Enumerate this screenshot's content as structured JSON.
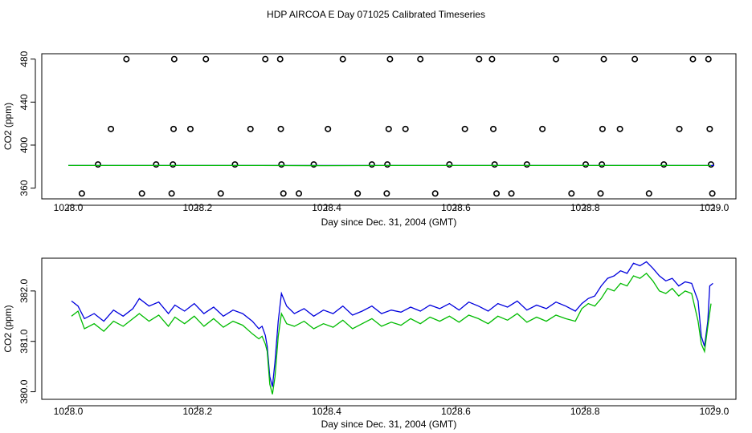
{
  "page_title": "HDP AIRCOA E  Day 071025  Calibrated Timeseries",
  "colors": {
    "blue": "#0000dd",
    "green": "#00bb00",
    "black": "#000000"
  },
  "chart_data": [
    {
      "type": "scatter",
      "title": "HDP AIRCOA E  Day 071025  Calibrated Timeseries",
      "xlabel": "Day since Dec. 31, 2004 (GMT)",
      "ylabel": "CO2 (ppm)",
      "xlim": [
        1028.0,
        1029.0
      ],
      "ylim": [
        350,
        485
      ],
      "xticks": [
        "1028.0",
        "1028.2",
        "1028.4",
        "1028.6",
        "1028.8",
        "1029.0"
      ],
      "xtick_values": [
        1028.0,
        1028.2,
        1028.4,
        1028.6,
        1028.8,
        1029.0
      ],
      "yticks": [
        "360",
        "400",
        "440",
        "480"
      ],
      "ytick_values": [
        360,
        400,
        440,
        480
      ],
      "series": [
        {
          "marker": "open-circle",
          "color": "#000000",
          "points": [
            [
              1028.021,
              355
            ],
            [
              1028.046,
              382
            ],
            [
              1028.066,
              415
            ],
            [
              1028.09,
              480
            ],
            [
              1028.114,
              355
            ],
            [
              1028.136,
              382
            ],
            [
              1028.16,
              355
            ],
            [
              1028.162,
              382
            ],
            [
              1028.163,
              415
            ],
            [
              1028.164,
              480
            ],
            [
              1028.189,
              415
            ],
            [
              1028.213,
              480
            ],
            [
              1028.236,
              355
            ],
            [
              1028.258,
              382
            ],
            [
              1028.282,
              415
            ],
            [
              1028.305,
              480
            ],
            [
              1028.328,
              480
            ],
            [
              1028.329,
              415
            ],
            [
              1028.33,
              382
            ],
            [
              1028.333,
              355
            ],
            [
              1028.357,
              355
            ],
            [
              1028.38,
              382
            ],
            [
              1028.402,
              415
            ],
            [
              1028.425,
              480
            ],
            [
              1028.448,
              355
            ],
            [
              1028.47,
              382
            ],
            [
              1028.493,
              355
            ],
            [
              1028.494,
              382
            ],
            [
              1028.496,
              415
            ],
            [
              1028.498,
              480
            ],
            [
              1028.522,
              415
            ],
            [
              1028.545,
              480
            ],
            [
              1028.568,
              355
            ],
            [
              1028.59,
              382
            ],
            [
              1028.614,
              415
            ],
            [
              1028.636,
              480
            ],
            [
              1028.656,
              480
            ],
            [
              1028.658,
              415
            ],
            [
              1028.66,
              382
            ],
            [
              1028.663,
              355
            ],
            [
              1028.686,
              355
            ],
            [
              1028.71,
              382
            ],
            [
              1028.734,
              415
            ],
            [
              1028.755,
              480
            ],
            [
              1028.779,
              355
            ],
            [
              1028.801,
              382
            ],
            [
              1028.824,
              355
            ],
            [
              1028.826,
              382
            ],
            [
              1028.827,
              415
            ],
            [
              1028.829,
              480
            ],
            [
              1028.854,
              415
            ],
            [
              1028.877,
              480
            ],
            [
              1028.899,
              355
            ],
            [
              1028.922,
              382
            ],
            [
              1028.946,
              415
            ],
            [
              1028.967,
              480
            ],
            [
              1028.991,
              480
            ],
            [
              1028.993,
              415
            ],
            [
              1028.995,
              382
            ],
            [
              1028.997,
              355
            ]
          ]
        },
        {
          "name": "",
          "type": "line",
          "color": "#0000dd",
          "x_start": 1028.0,
          "x_end": 1029.0,
          "values": [
            381,
            381,
            381,
            381,
            381,
            381,
            381,
            381,
            381,
            381,
            381
          ]
        },
        {
          "name": "",
          "type": "line",
          "color": "#00bb00",
          "x_start": 1028.0,
          "x_end": 1028.995,
          "values": [
            381,
            381,
            381,
            381,
            380.9,
            381,
            381,
            381,
            381,
            381,
            381
          ]
        }
      ]
    },
    {
      "type": "line",
      "xlabel": "Day since Dec. 31, 2004 (GMT)",
      "ylabel": "CO2 (ppm)",
      "xlim": [
        1028.0,
        1029.0
      ],
      "ylim": [
        379.85,
        382.65
      ],
      "xticks": [
        "1028.0",
        "1028.2",
        "1028.4",
        "1028.6",
        "1028.8",
        "1029.0"
      ],
      "xtick_values": [
        1028.0,
        1028.2,
        1028.4,
        1028.6,
        1028.8,
        1029.0
      ],
      "yticks": [
        "380.0",
        "381.0",
        "382.0"
      ],
      "ytick_values": [
        380.0,
        381.0,
        382.0
      ],
      "series": [
        {
          "color": "#0000dd",
          "points": [
            [
              1028.005,
              381.8
            ],
            [
              1028.015,
              381.7
            ],
            [
              1028.025,
              381.45
            ],
            [
              1028.04,
              381.55
            ],
            [
              1028.055,
              381.4
            ],
            [
              1028.07,
              381.62
            ],
            [
              1028.085,
              381.5
            ],
            [
              1028.1,
              381.65
            ],
            [
              1028.11,
              381.85
            ],
            [
              1028.125,
              381.7
            ],
            [
              1028.14,
              381.78
            ],
            [
              1028.155,
              381.55
            ],
            [
              1028.165,
              381.72
            ],
            [
              1028.18,
              381.6
            ],
            [
              1028.195,
              381.75
            ],
            [
              1028.21,
              381.55
            ],
            [
              1028.225,
              381.68
            ],
            [
              1028.24,
              381.5
            ],
            [
              1028.255,
              381.62
            ],
            [
              1028.27,
              381.55
            ],
            [
              1028.285,
              381.4
            ],
            [
              1028.295,
              381.25
            ],
            [
              1028.3,
              381.3
            ],
            [
              1028.305,
              381.12
            ],
            [
              1028.308,
              380.9
            ],
            [
              1028.312,
              380.3
            ],
            [
              1028.316,
              380.1
            ],
            [
              1028.32,
              380.6
            ],
            [
              1028.325,
              381.4
            ],
            [
              1028.33,
              381.95
            ],
            [
              1028.338,
              381.7
            ],
            [
              1028.35,
              381.55
            ],
            [
              1028.365,
              381.65
            ],
            [
              1028.38,
              381.5
            ],
            [
              1028.395,
              381.62
            ],
            [
              1028.41,
              381.55
            ],
            [
              1028.425,
              381.7
            ],
            [
              1028.44,
              381.52
            ],
            [
              1028.455,
              381.6
            ],
            [
              1028.47,
              381.7
            ],
            [
              1028.485,
              381.55
            ],
            [
              1028.5,
              381.62
            ],
            [
              1028.515,
              381.58
            ],
            [
              1028.53,
              381.68
            ],
            [
              1028.545,
              381.6
            ],
            [
              1028.56,
              381.72
            ],
            [
              1028.575,
              381.65
            ],
            [
              1028.59,
              381.75
            ],
            [
              1028.605,
              381.62
            ],
            [
              1028.62,
              381.78
            ],
            [
              1028.635,
              381.7
            ],
            [
              1028.65,
              381.6
            ],
            [
              1028.665,
              381.75
            ],
            [
              1028.68,
              381.68
            ],
            [
              1028.695,
              381.8
            ],
            [
              1028.71,
              381.62
            ],
            [
              1028.725,
              381.72
            ],
            [
              1028.74,
              381.65
            ],
            [
              1028.755,
              381.78
            ],
            [
              1028.77,
              381.7
            ],
            [
              1028.785,
              381.6
            ],
            [
              1028.795,
              381.75
            ],
            [
              1028.805,
              381.85
            ],
            [
              1028.815,
              381.9
            ],
            [
              1028.825,
              382.1
            ],
            [
              1028.835,
              382.25
            ],
            [
              1028.845,
              382.3
            ],
            [
              1028.855,
              382.4
            ],
            [
              1028.865,
              382.35
            ],
            [
              1028.875,
              382.55
            ],
            [
              1028.885,
              382.5
            ],
            [
              1028.895,
              382.58
            ],
            [
              1028.905,
              382.45
            ],
            [
              1028.915,
              382.3
            ],
            [
              1028.925,
              382.2
            ],
            [
              1028.935,
              382.25
            ],
            [
              1028.945,
              382.1
            ],
            [
              1028.955,
              382.18
            ],
            [
              1028.965,
              382.15
            ],
            [
              1028.975,
              381.8
            ],
            [
              1028.98,
              381.1
            ],
            [
              1028.985,
              380.9
            ],
            [
              1028.99,
              381.4
            ],
            [
              1028.993,
              382.1
            ],
            [
              1028.998,
              382.15
            ]
          ]
        },
        {
          "color": "#00bb00",
          "points": [
            [
              1028.005,
              381.5
            ],
            [
              1028.015,
              381.6
            ],
            [
              1028.025,
              381.25
            ],
            [
              1028.04,
              381.35
            ],
            [
              1028.055,
              381.2
            ],
            [
              1028.07,
              381.4
            ],
            [
              1028.085,
              381.3
            ],
            [
              1028.1,
              381.45
            ],
            [
              1028.11,
              381.55
            ],
            [
              1028.125,
              381.4
            ],
            [
              1028.14,
              381.52
            ],
            [
              1028.155,
              381.3
            ],
            [
              1028.165,
              381.48
            ],
            [
              1028.18,
              381.35
            ],
            [
              1028.195,
              381.5
            ],
            [
              1028.21,
              381.3
            ],
            [
              1028.225,
              381.45
            ],
            [
              1028.24,
              381.28
            ],
            [
              1028.255,
              381.4
            ],
            [
              1028.27,
              381.32
            ],
            [
              1028.285,
              381.15
            ],
            [
              1028.295,
              381.05
            ],
            [
              1028.3,
              381.1
            ],
            [
              1028.305,
              380.95
            ],
            [
              1028.308,
              380.8
            ],
            [
              1028.312,
              380.15
            ],
            [
              1028.316,
              379.95
            ],
            [
              1028.32,
              380.3
            ],
            [
              1028.325,
              381.1
            ],
            [
              1028.33,
              381.55
            ],
            [
              1028.338,
              381.35
            ],
            [
              1028.35,
              381.3
            ],
            [
              1028.365,
              381.4
            ],
            [
              1028.38,
              381.25
            ],
            [
              1028.395,
              381.35
            ],
            [
              1028.41,
              381.28
            ],
            [
              1028.425,
              381.42
            ],
            [
              1028.44,
              381.25
            ],
            [
              1028.455,
              381.35
            ],
            [
              1028.47,
              381.45
            ],
            [
              1028.485,
              381.3
            ],
            [
              1028.5,
              381.38
            ],
            [
              1028.515,
              381.32
            ],
            [
              1028.53,
              381.45
            ],
            [
              1028.545,
              381.35
            ],
            [
              1028.56,
              381.48
            ],
            [
              1028.575,
              381.4
            ],
            [
              1028.59,
              381.5
            ],
            [
              1028.605,
              381.38
            ],
            [
              1028.62,
              381.52
            ],
            [
              1028.635,
              381.45
            ],
            [
              1028.65,
              381.35
            ],
            [
              1028.665,
              381.5
            ],
            [
              1028.68,
              381.42
            ],
            [
              1028.695,
              381.55
            ],
            [
              1028.71,
              381.38
            ],
            [
              1028.725,
              381.48
            ],
            [
              1028.74,
              381.4
            ],
            [
              1028.755,
              381.52
            ],
            [
              1028.77,
              381.45
            ],
            [
              1028.785,
              381.4
            ],
            [
              1028.795,
              381.65
            ],
            [
              1028.805,
              381.75
            ],
            [
              1028.815,
              381.7
            ],
            [
              1028.825,
              381.85
            ],
            [
              1028.835,
              382.05
            ],
            [
              1028.845,
              382.0
            ],
            [
              1028.855,
              382.15
            ],
            [
              1028.865,
              382.1
            ],
            [
              1028.875,
              382.3
            ],
            [
              1028.885,
              382.25
            ],
            [
              1028.895,
              382.35
            ],
            [
              1028.905,
              382.2
            ],
            [
              1028.915,
              382.0
            ],
            [
              1028.925,
              381.95
            ],
            [
              1028.935,
              382.05
            ],
            [
              1028.945,
              381.9
            ],
            [
              1028.955,
              382.0
            ],
            [
              1028.965,
              381.95
            ],
            [
              1028.975,
              381.4
            ],
            [
              1028.98,
              380.95
            ],
            [
              1028.985,
              380.8
            ],
            [
              1028.99,
              381.3
            ],
            [
              1028.995,
              381.75
            ]
          ]
        }
      ]
    }
  ]
}
